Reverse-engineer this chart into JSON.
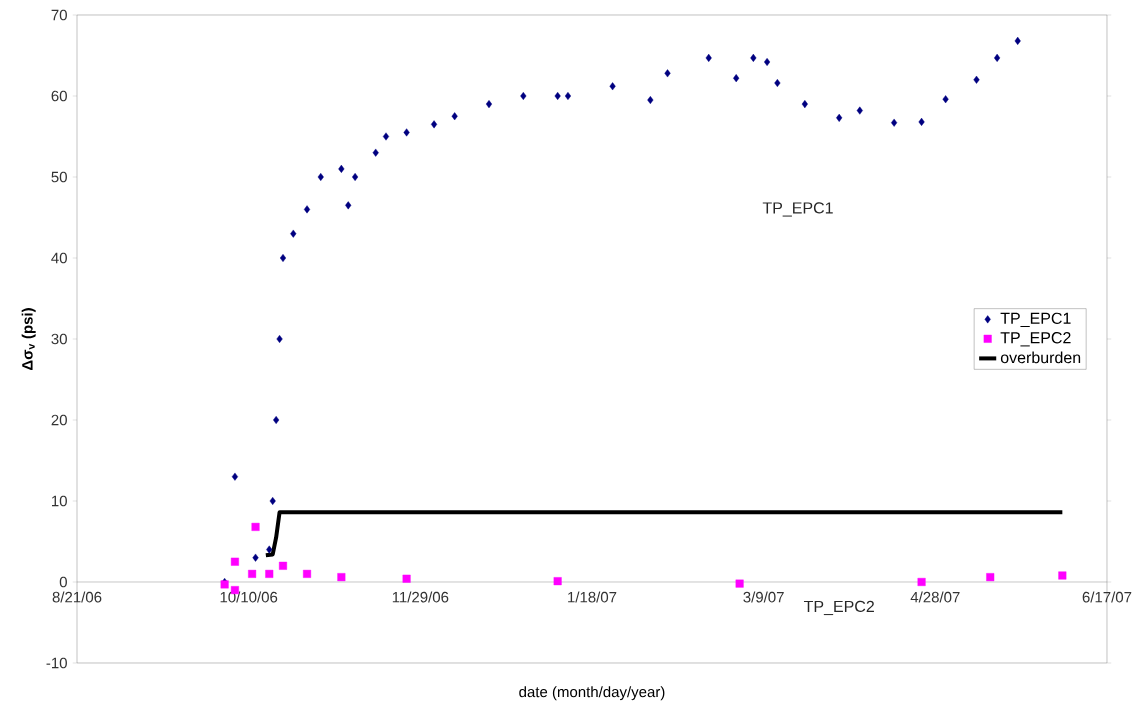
{
  "chart_data": {
    "type": "scatter",
    "xlabel": "date (month/day/year)",
    "ylabel": "Δσ$_{v}$ (psi)",
    "xlim": [
      "2006-08-21",
      "2007-06-17"
    ],
    "ylim": [
      -10,
      70
    ],
    "xticks": [
      {
        "value": "2006-08-21",
        "label": "8/21/06"
      },
      {
        "value": "2006-10-10",
        "label": "10/10/06"
      },
      {
        "value": "2006-11-29",
        "label": "11/29/06"
      },
      {
        "value": "2007-01-18",
        "label": "1/18/07"
      },
      {
        "value": "2007-03-09",
        "label": "3/9/07"
      },
      {
        "value": "2007-04-28",
        "label": "4/28/07"
      },
      {
        "value": "2007-06-17",
        "label": "6/17/07"
      }
    ],
    "yticks": [
      -10,
      0,
      10,
      20,
      30,
      40,
      50,
      60,
      70
    ],
    "legend": "right",
    "grid": false,
    "annotations": [
      "TP_EPC1",
      "TP_EPC2"
    ],
    "series": [
      {
        "name": "TP_EPC1",
        "marker": "diamond",
        "color": "#000080",
        "x": [
          "2006-10-03",
          "2006-10-06",
          "2006-10-12",
          "2006-10-16",
          "2006-10-17",
          "2006-10-18",
          "2006-10-19",
          "2006-10-20",
          "2006-10-23",
          "2006-10-27",
          "2006-10-31",
          "2006-11-06",
          "2006-11-08",
          "2006-11-10",
          "2006-11-16",
          "2006-11-19",
          "2006-11-25",
          "2006-12-03",
          "2006-12-09",
          "2006-12-19",
          "2006-12-29",
          "2007-01-08",
          "2007-01-11",
          "2007-01-24",
          "2007-02-04",
          "2007-02-09",
          "2007-02-21",
          "2007-03-01",
          "2007-03-06",
          "2007-03-10",
          "2007-03-13",
          "2007-03-21",
          "2007-03-31",
          "2007-04-06",
          "2007-04-16",
          "2007-04-24",
          "2007-05-01",
          "2007-05-10",
          "2007-05-16",
          "2007-05-22"
        ],
        "values": [
          0,
          13,
          3,
          4,
          10,
          20,
          30,
          40,
          43,
          46,
          50,
          51,
          46.5,
          50,
          53,
          55,
          55.5,
          56.5,
          57.5,
          59,
          60,
          60,
          60,
          61.2,
          59.5,
          62.8,
          64.7,
          62.2,
          64.7,
          64.2,
          61.6,
          59,
          57.3,
          58.2,
          56.7,
          56.8,
          59.6,
          62,
          64.7,
          66.8
        ]
      },
      {
        "name": "TP_EPC2",
        "marker": "square",
        "color": "#ff00ff",
        "x": [
          "2006-10-03",
          "2006-10-06",
          "2006-10-06",
          "2006-10-11",
          "2006-10-12",
          "2006-10-16",
          "2006-10-20",
          "2006-10-27",
          "2006-11-06",
          "2006-11-25",
          "2007-01-08",
          "2007-03-02",
          "2007-04-24",
          "2007-05-14",
          "2007-06-04"
        ],
        "values": [
          -0.3,
          -1,
          2.5,
          1,
          6.8,
          1,
          2,
          1,
          0.6,
          0.4,
          0.1,
          -0.2,
          0,
          0.6,
          0.8
        ]
      },
      {
        "name": "overburden",
        "type": "line",
        "marker": "none",
        "line_style": "solid",
        "color": "#000000",
        "x": [
          "2006-10-15",
          "2006-10-17",
          "2006-10-18",
          "2006-10-19",
          "2007-06-04"
        ],
        "values": [
          3.3,
          3.4,
          5.5,
          8.6,
          8.6
        ]
      }
    ]
  }
}
